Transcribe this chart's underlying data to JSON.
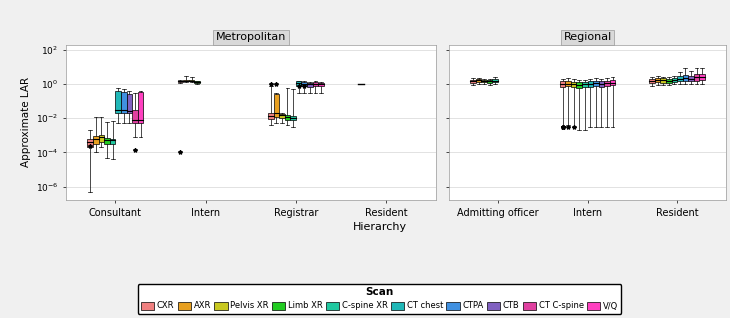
{
  "scan_types": [
    "CXR",
    "AXR",
    "Pelvis XR",
    "Limb XR",
    "C-spine XR",
    "CT chest",
    "CTPA",
    "CTB",
    "CT C-spine",
    "V/Q"
  ],
  "scan_colors": [
    "#F08080",
    "#E8A020",
    "#C8C820",
    "#22CC22",
    "#20C8A0",
    "#20B8B8",
    "#4090E0",
    "#8060C0",
    "#E040A0",
    "#FF40C0"
  ],
  "facet_labels": [
    "Metropolitan",
    "Regional"
  ],
  "metro_hierarchy": [
    "Consultant",
    "Intern",
    "Registrar",
    "Resident"
  ],
  "regional_hierarchy": [
    "Admitting officer",
    "Intern",
    "Resident"
  ],
  "ylabel": "Approximate LAR",
  "xlabel": "Hierarchy",
  "bg_color": "#f0f0f0",
  "facet_bg": "#d9d9d9",
  "metro_data": {
    "Consultant": {
      "CXR": {
        "q1": 0.0002,
        "med": 0.0004,
        "q3": 0.0006,
        "whislo": 5e-07,
        "whishi": 0.002,
        "fliers": [
          0.00025
        ]
      },
      "AXR": {
        "q1": 0.0003,
        "med": 0.0006,
        "q3": 0.0009,
        "whislo": 0.0001,
        "whishi": 0.012,
        "fliers": []
      },
      "Pelvis XR": {
        "q1": 0.0004,
        "med": 0.0008,
        "q3": 0.0011,
        "whislo": 0.0002,
        "whishi": 0.012,
        "fliers": []
      },
      "Limb XR": {
        "q1": 0.0003,
        "med": 0.0005,
        "q3": 0.0007,
        "whislo": 5e-05,
        "whishi": 0.006,
        "fliers": []
      },
      "C-spine XR": {
        "q1": 0.0003,
        "med": 0.0005,
        "q3": 0.0006,
        "whislo": 4e-05,
        "whishi": 0.007,
        "fliers": []
      },
      "CT chest": {
        "q1": 0.02,
        "med": 0.03,
        "q3": 0.4,
        "whislo": 0.005,
        "whishi": 0.6,
        "fliers": []
      },
      "CTPA": {
        "q1": 0.02,
        "med": 0.03,
        "q3": 0.35,
        "whislo": 0.005,
        "whishi": 0.5,
        "fliers": []
      },
      "CTB": {
        "q1": 0.02,
        "med": 0.025,
        "q3": 0.25,
        "whislo": 0.005,
        "whishi": 0.4,
        "fliers": []
      },
      "CT C-spine": {
        "q1": 0.005,
        "med": 0.008,
        "q3": 0.03,
        "whislo": 0.0008,
        "whishi": 0.3,
        "fliers": [
          0.00013
        ]
      },
      "V/Q": {
        "q1": 0.005,
        "med": 0.008,
        "q3": 0.35,
        "whislo": 0.0008,
        "whishi": 0.4,
        "fliers": []
      }
    },
    "Intern": {
      "CXR": {
        "q1": 1.3,
        "med": 1.5,
        "q3": 1.55,
        "whislo": 1.2,
        "whishi": 1.6,
        "fliers": [
          0.0001
        ]
      },
      "AXR": {
        "q1": 1.4,
        "med": 1.5,
        "q3": 1.6,
        "whislo": 1.3,
        "whishi": 3.0,
        "fliers": []
      },
      "Pelvis XR": {
        "q1": 1.4,
        "med": 1.5,
        "q3": 1.6,
        "whislo": 1.3,
        "whishi": 2.5,
        "fliers": []
      },
      "Limb XR": {
        "q1": 1.1,
        "med": 1.3,
        "q3": 1.5,
        "whislo": 1.0,
        "whishi": 1.5,
        "fliers": []
      },
      "C-spine XR": {
        "q1": null,
        "med": null,
        "q3": null,
        "whislo": null,
        "whishi": null,
        "fliers": []
      },
      "CT chest": {
        "q1": null,
        "med": null,
        "q3": null,
        "whislo": null,
        "whishi": null,
        "fliers": []
      },
      "CTPA": {
        "q1": null,
        "med": null,
        "q3": null,
        "whislo": null,
        "whishi": null,
        "fliers": []
      },
      "CTB": {
        "q1": null,
        "med": null,
        "q3": null,
        "whislo": null,
        "whishi": null,
        "fliers": []
      },
      "CT C-spine": {
        "q1": null,
        "med": null,
        "q3": null,
        "whislo": null,
        "whishi": null,
        "fliers": []
      },
      "V/Q": {
        "q1": null,
        "med": null,
        "q3": null,
        "whislo": null,
        "whishi": null,
        "fliers": []
      }
    },
    "Registrar": {
      "CXR": {
        "q1": 0.009,
        "med": 0.013,
        "q3": 0.02,
        "whislo": 0.004,
        "whishi": 0.8,
        "fliers": [
          1.0
        ]
      },
      "AXR": {
        "q1": 0.012,
        "med": 0.02,
        "q3": 0.25,
        "whislo": 0.005,
        "whishi": 0.3,
        "fliers": [
          1.0
        ]
      },
      "Pelvis XR": {
        "q1": 0.01,
        "med": 0.015,
        "q3": 0.018,
        "whislo": 0.005,
        "whishi": 0.02,
        "fliers": []
      },
      "Limb XR": {
        "q1": 0.008,
        "med": 0.012,
        "q3": 0.015,
        "whislo": 0.004,
        "whishi": 0.6,
        "fliers": []
      },
      "C-spine XR": {
        "q1": 0.008,
        "med": 0.01,
        "q3": 0.013,
        "whislo": 0.003,
        "whishi": 0.5,
        "fliers": []
      },
      "CT chest": {
        "q1": 0.8,
        "med": 1.1,
        "q3": 1.4,
        "whislo": 0.3,
        "whishi": 1.5,
        "fliers": [
          0.8
        ]
      },
      "CTPA": {
        "q1": 0.8,
        "med": 1.0,
        "q3": 1.3,
        "whislo": 0.3,
        "whishi": 1.4,
        "fliers": [
          0.8
        ]
      },
      "CTB": {
        "q1": 0.7,
        "med": 1.0,
        "q3": 1.2,
        "whislo": 0.3,
        "whishi": 1.3,
        "fliers": []
      },
      "CT C-spine": {
        "q1": 0.8,
        "med": 1.0,
        "q3": 1.3,
        "whislo": 0.3,
        "whishi": 1.4,
        "fliers": []
      },
      "V/Q": {
        "q1": 0.8,
        "med": 1.0,
        "q3": 1.2,
        "whislo": 0.3,
        "whishi": 1.3,
        "fliers": []
      }
    },
    "Resident": {
      "CXR": {
        "q1": null,
        "med": 1.0,
        "q3": null,
        "whislo": null,
        "whishi": null,
        "fliers": []
      },
      "AXR": {
        "q1": null,
        "med": null,
        "q3": null,
        "whislo": null,
        "whishi": null,
        "fliers": []
      },
      "Pelvis XR": {
        "q1": null,
        "med": null,
        "q3": null,
        "whislo": null,
        "whishi": null,
        "fliers": []
      },
      "Limb XR": {
        "q1": null,
        "med": null,
        "q3": null,
        "whislo": null,
        "whishi": null,
        "fliers": []
      },
      "C-spine XR": {
        "q1": null,
        "med": null,
        "q3": null,
        "whislo": null,
        "whishi": null,
        "fliers": []
      },
      "CT chest": {
        "q1": null,
        "med": null,
        "q3": null,
        "whislo": null,
        "whishi": null,
        "fliers": []
      },
      "CTPA": {
        "q1": null,
        "med": null,
        "q3": null,
        "whislo": null,
        "whishi": null,
        "fliers": []
      },
      "CTB": {
        "q1": null,
        "med": null,
        "q3": null,
        "whislo": null,
        "whishi": null,
        "fliers": []
      },
      "CT C-spine": {
        "q1": null,
        "med": null,
        "q3": null,
        "whislo": null,
        "whishi": null,
        "fliers": []
      },
      "V/Q": {
        "q1": null,
        "med": null,
        "q3": null,
        "whislo": null,
        "whishi": null,
        "fliers": []
      }
    }
  },
  "regional_data": {
    "Admitting officer": {
      "CXR": {
        "q1": 1.2,
        "med": 1.5,
        "q3": 1.8,
        "whislo": 0.9,
        "whishi": 2.2,
        "fliers": []
      },
      "AXR": {
        "q1": 1.3,
        "med": 1.6,
        "q3": 1.9,
        "whislo": 1.0,
        "whishi": 2.3,
        "fliers": []
      },
      "Pelvis XR": {
        "q1": 1.3,
        "med": 1.5,
        "q3": 1.7,
        "whislo": 1.0,
        "whishi": 2.0,
        "fliers": []
      },
      "Limb XR": {
        "q1": 1.2,
        "med": 1.4,
        "q3": 1.6,
        "whislo": 0.9,
        "whishi": 2.0,
        "fliers": []
      },
      "C-spine XR": {
        "q1": 1.3,
        "med": 1.5,
        "q3": 2.0,
        "whislo": 1.0,
        "whishi": 2.5,
        "fliers": []
      },
      "CT chest": {
        "q1": null,
        "med": null,
        "q3": null,
        "whislo": null,
        "whishi": null,
        "fliers": []
      },
      "CTPA": {
        "q1": null,
        "med": null,
        "q3": null,
        "whislo": null,
        "whishi": null,
        "fliers": []
      },
      "CTB": {
        "q1": null,
        "med": null,
        "q3": null,
        "whislo": null,
        "whishi": null,
        "fliers": []
      },
      "CT C-spine": {
        "q1": null,
        "med": null,
        "q3": null,
        "whislo": null,
        "whishi": null,
        "fliers": []
      },
      "V/Q": {
        "q1": null,
        "med": null,
        "q3": null,
        "whislo": null,
        "whishi": null,
        "fliers": []
      }
    },
    "Intern": {
      "CXR": {
        "q1": 0.7,
        "med": 1.0,
        "q3": 1.4,
        "whislo": 0.003,
        "whishi": 2.0,
        "fliers": [
          0.003,
          0.003,
          0.003,
          0.003,
          0.003
        ]
      },
      "AXR": {
        "q1": 0.8,
        "med": 1.0,
        "q3": 1.5,
        "whislo": 0.004,
        "whishi": 2.2,
        "fliers": [
          0.003
        ]
      },
      "Pelvis XR": {
        "q1": 0.7,
        "med": 1.0,
        "q3": 1.3,
        "whislo": 0.003,
        "whishi": 2.0,
        "fliers": [
          0.003
        ]
      },
      "Limb XR": {
        "q1": 0.6,
        "med": 0.9,
        "q3": 1.3,
        "whislo": 0.002,
        "whishi": 1.8,
        "fliers": []
      },
      "C-spine XR": {
        "q1": 0.7,
        "med": 1.0,
        "q3": 1.3,
        "whislo": 0.002,
        "whishi": 1.8,
        "fliers": []
      },
      "CT chest": {
        "q1": 0.7,
        "med": 1.0,
        "q3": 1.5,
        "whislo": 0.003,
        "whishi": 2.0,
        "fliers": []
      },
      "CTPA": {
        "q1": 0.8,
        "med": 1.1,
        "q3": 1.5,
        "whislo": 0.003,
        "whishi": 2.2,
        "fliers": []
      },
      "CTB": {
        "q1": 0.7,
        "med": 1.0,
        "q3": 1.4,
        "whislo": 0.003,
        "whishi": 2.0,
        "fliers": []
      },
      "CT C-spine": {
        "q1": 0.8,
        "med": 1.1,
        "q3": 1.5,
        "whislo": 0.003,
        "whishi": 2.2,
        "fliers": []
      },
      "V/Q": {
        "q1": 0.9,
        "med": 1.2,
        "q3": 1.6,
        "whislo": 0.003,
        "whishi": 2.5,
        "fliers": []
      }
    },
    "Resident": {
      "CXR": {
        "q1": 1.2,
        "med": 1.5,
        "q3": 2.0,
        "whislo": 0.8,
        "whishi": 2.5,
        "fliers": []
      },
      "AXR": {
        "q1": 1.3,
        "med": 1.6,
        "q3": 2.2,
        "whislo": 0.9,
        "whishi": 2.8,
        "fliers": []
      },
      "Pelvis XR": {
        "q1": 1.2,
        "med": 1.6,
        "q3": 2.1,
        "whislo": 0.9,
        "whishi": 2.7,
        "fliers": []
      },
      "Limb XR": {
        "q1": 1.2,
        "med": 1.5,
        "q3": 2.0,
        "whislo": 0.9,
        "whishi": 2.5,
        "fliers": []
      },
      "C-spine XR": {
        "q1": 1.3,
        "med": 1.7,
        "q3": 2.2,
        "whislo": 1.0,
        "whishi": 2.8,
        "fliers": []
      },
      "CT chest": {
        "q1": 1.5,
        "med": 2.0,
        "q3": 3.0,
        "whislo": 1.0,
        "whishi": 5.0,
        "fliers": []
      },
      "CTPA": {
        "q1": 1.5,
        "med": 2.2,
        "q3": 3.5,
        "whislo": 1.0,
        "whishi": 8.0,
        "fliers": []
      },
      "CTB": {
        "q1": 1.4,
        "med": 2.0,
        "q3": 3.0,
        "whislo": 1.0,
        "whishi": 6.0,
        "fliers": []
      },
      "CT C-spine": {
        "q1": 1.5,
        "med": 2.5,
        "q3": 4.0,
        "whislo": 1.0,
        "whishi": 8.0,
        "fliers": []
      },
      "V/Q": {
        "q1": 1.6,
        "med": 2.5,
        "q3": 4.0,
        "whislo": 1.0,
        "whishi": 9.0,
        "fliers": []
      }
    }
  }
}
